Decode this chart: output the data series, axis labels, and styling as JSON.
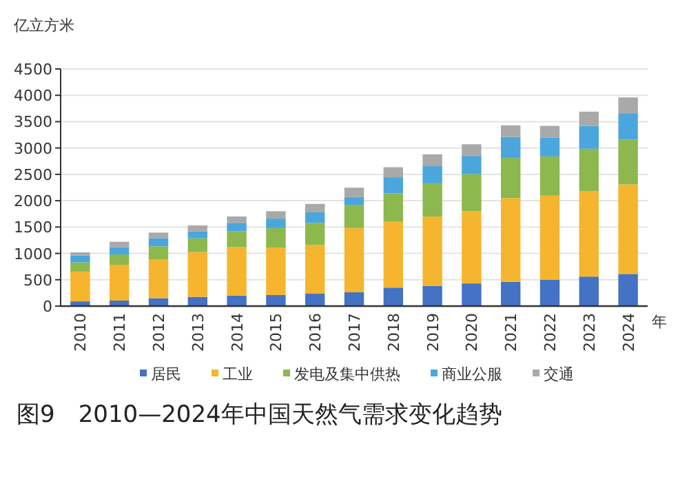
{
  "chart_data": {
    "type": "bar",
    "stacked": true,
    "title": "图9　2010—2024年中国天然气需求变化趋势",
    "ylabel": "亿立方米",
    "xlabel": "年",
    "categories": [
      "2010",
      "2011",
      "2012",
      "2013",
      "2014",
      "2015",
      "2016",
      "2017",
      "2018",
      "2019",
      "2020",
      "2021",
      "2022",
      "2023",
      "2024"
    ],
    "series": [
      {
        "name": "居民",
        "color": "#4472c4",
        "values": [
          90,
          105,
          150,
          175,
          200,
          210,
          235,
          262,
          350,
          385,
          430,
          460,
          500,
          560,
          610
        ]
      },
      {
        "name": "工业",
        "color": "#f5b52e",
        "values": [
          565,
          680,
          740,
          850,
          920,
          900,
          925,
          1220,
          1250,
          1315,
          1370,
          1590,
          1595,
          1625,
          1700
        ]
      },
      {
        "name": "发电及集中供热",
        "color": "#8cb84e",
        "values": [
          175,
          195,
          245,
          260,
          300,
          370,
          420,
          440,
          540,
          630,
          705,
          760,
          745,
          800,
          850
        ]
      },
      {
        "name": "商业公服",
        "color": "#4ba6dd",
        "values": [
          130,
          140,
          155,
          130,
          160,
          180,
          200,
          150,
          305,
          325,
          345,
          400,
          360,
          435,
          500
        ]
      },
      {
        "name": "交通",
        "color": "#a9a9a9",
        "values": [
          60,
          100,
          105,
          115,
          120,
          140,
          160,
          175,
          190,
          225,
          220,
          220,
          220,
          270,
          300
        ]
      }
    ],
    "ylim": [
      0,
      4500
    ],
    "yticks": [
      0,
      500,
      1000,
      1500,
      2000,
      2500,
      3000,
      3500,
      4000,
      4500
    ],
    "grid": "y",
    "legend": "bottom"
  }
}
